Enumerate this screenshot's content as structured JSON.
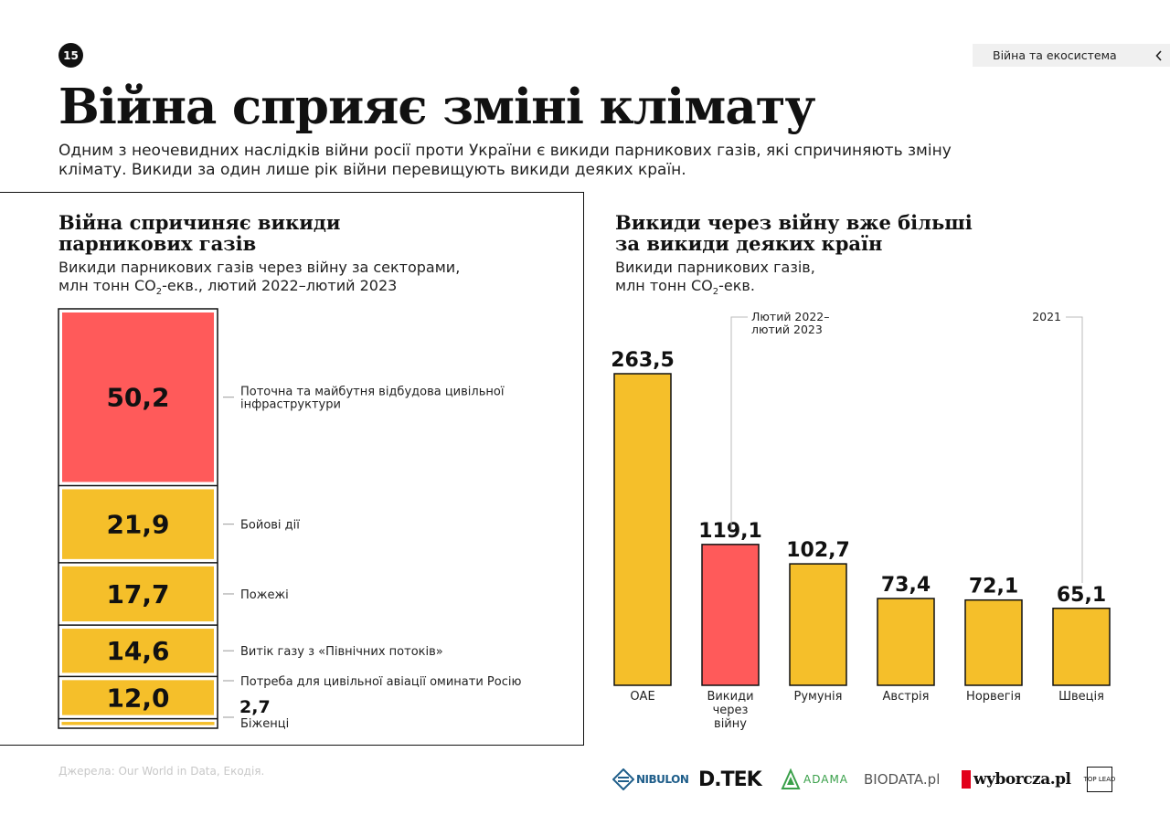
{
  "page_number": "15",
  "section_tab": {
    "label": "Війна та екосистема"
  },
  "title": "Війна сприяє зміні клімату",
  "intro": "Одним з неочевидних наслідків війни росії проти України є викиди парникових газів, які спричиняють зміну клімату. Викиди за один лише рік війни перевищують викиди деяких країн.",
  "left": {
    "title_line1": "Війна спричиняє викиди",
    "title_line2": "парникових газів",
    "subtitle_line1": "Викиди парникових газів через війну за секторами,",
    "subtitle_line2_a": "млн тонн CO",
    "subtitle_line2_sub": "2",
    "subtitle_line2_b": "-екв., лютий 2022–лютий 2023"
  },
  "right": {
    "title_line1": "Викиди через війну вже більші",
    "title_line2": "за викиди деяких країн",
    "subtitle_line1": "Викиди парникових газів,",
    "subtitle_line2_a": "млн тонн CO",
    "subtitle_line2_sub": "2",
    "subtitle_line2_b": "-екв."
  },
  "source": "Джерела: Our World in Data, Екодія.",
  "logos": [
    "NIBULON",
    "D.TEK",
    "ADAMA",
    "BIODATA.pl",
    "wyborcza.pl",
    "TOP LEAD"
  ],
  "colors": {
    "red": "#ff5a5a",
    "yellow": "#f5bf2a",
    "ink": "#111111"
  },
  "chart_data": [
    {
      "type": "bar",
      "stacked": true,
      "categories": [
        "Поточна та майбутня відбудова цивільної інфраструктури",
        "Бойові дії",
        "Пожежі",
        "Витік газу з «Північних потоків»",
        "Потреба для цивільної авіації оминати Росію",
        "Біженці"
      ],
      "values": [
        50.2,
        21.9,
        17.7,
        14.6,
        12.0,
        2.7
      ],
      "value_labels": [
        "50,2",
        "21,9",
        "17,7",
        "14,6",
        "12,0",
        "2,7"
      ],
      "label_lines": [
        [
          "Поточна та майбутня відбудова цивільної",
          "інфраструктури"
        ],
        [
          "Бойові дії"
        ],
        [
          "Пожежі"
        ],
        [
          "Витік газу з «Північних потоків»"
        ],
        [
          "Потреба для цивільної авіації оминати Росію"
        ],
        [
          "Біженці"
        ]
      ],
      "colors": [
        "#ff5a5a",
        "#f5bf2a",
        "#f5bf2a",
        "#f5bf2a",
        "#f5bf2a",
        "#f5bf2a"
      ]
    },
    {
      "type": "bar",
      "categories": [
        "ОАЕ",
        "Викиди через війну",
        "Румунія",
        "Австрія",
        "Норвегія",
        "Швеція"
      ],
      "category_lines": [
        [
          "ОАЕ"
        ],
        [
          "Викиди",
          "через",
          "війну"
        ],
        [
          "Румунія"
        ],
        [
          "Австрія"
        ],
        [
          "Норвегія"
        ],
        [
          "Швеція"
        ]
      ],
      "values": [
        263.5,
        119.1,
        102.7,
        73.4,
        72.1,
        65.1
      ],
      "value_labels": [
        "263,5",
        "119,1",
        "102,7",
        "73,4",
        "72,1",
        "65,1"
      ],
      "colors": [
        "#f5bf2a",
        "#ff5a5a",
        "#f5bf2a",
        "#f5bf2a",
        "#f5bf2a",
        "#f5bf2a"
      ],
      "annotations": [
        {
          "lines": [
            "Лютий 2022–",
            "лютий 2023"
          ],
          "bar_index": 1
        },
        {
          "lines": [
            "2021"
          ],
          "bar_index": 5
        }
      ]
    }
  ]
}
